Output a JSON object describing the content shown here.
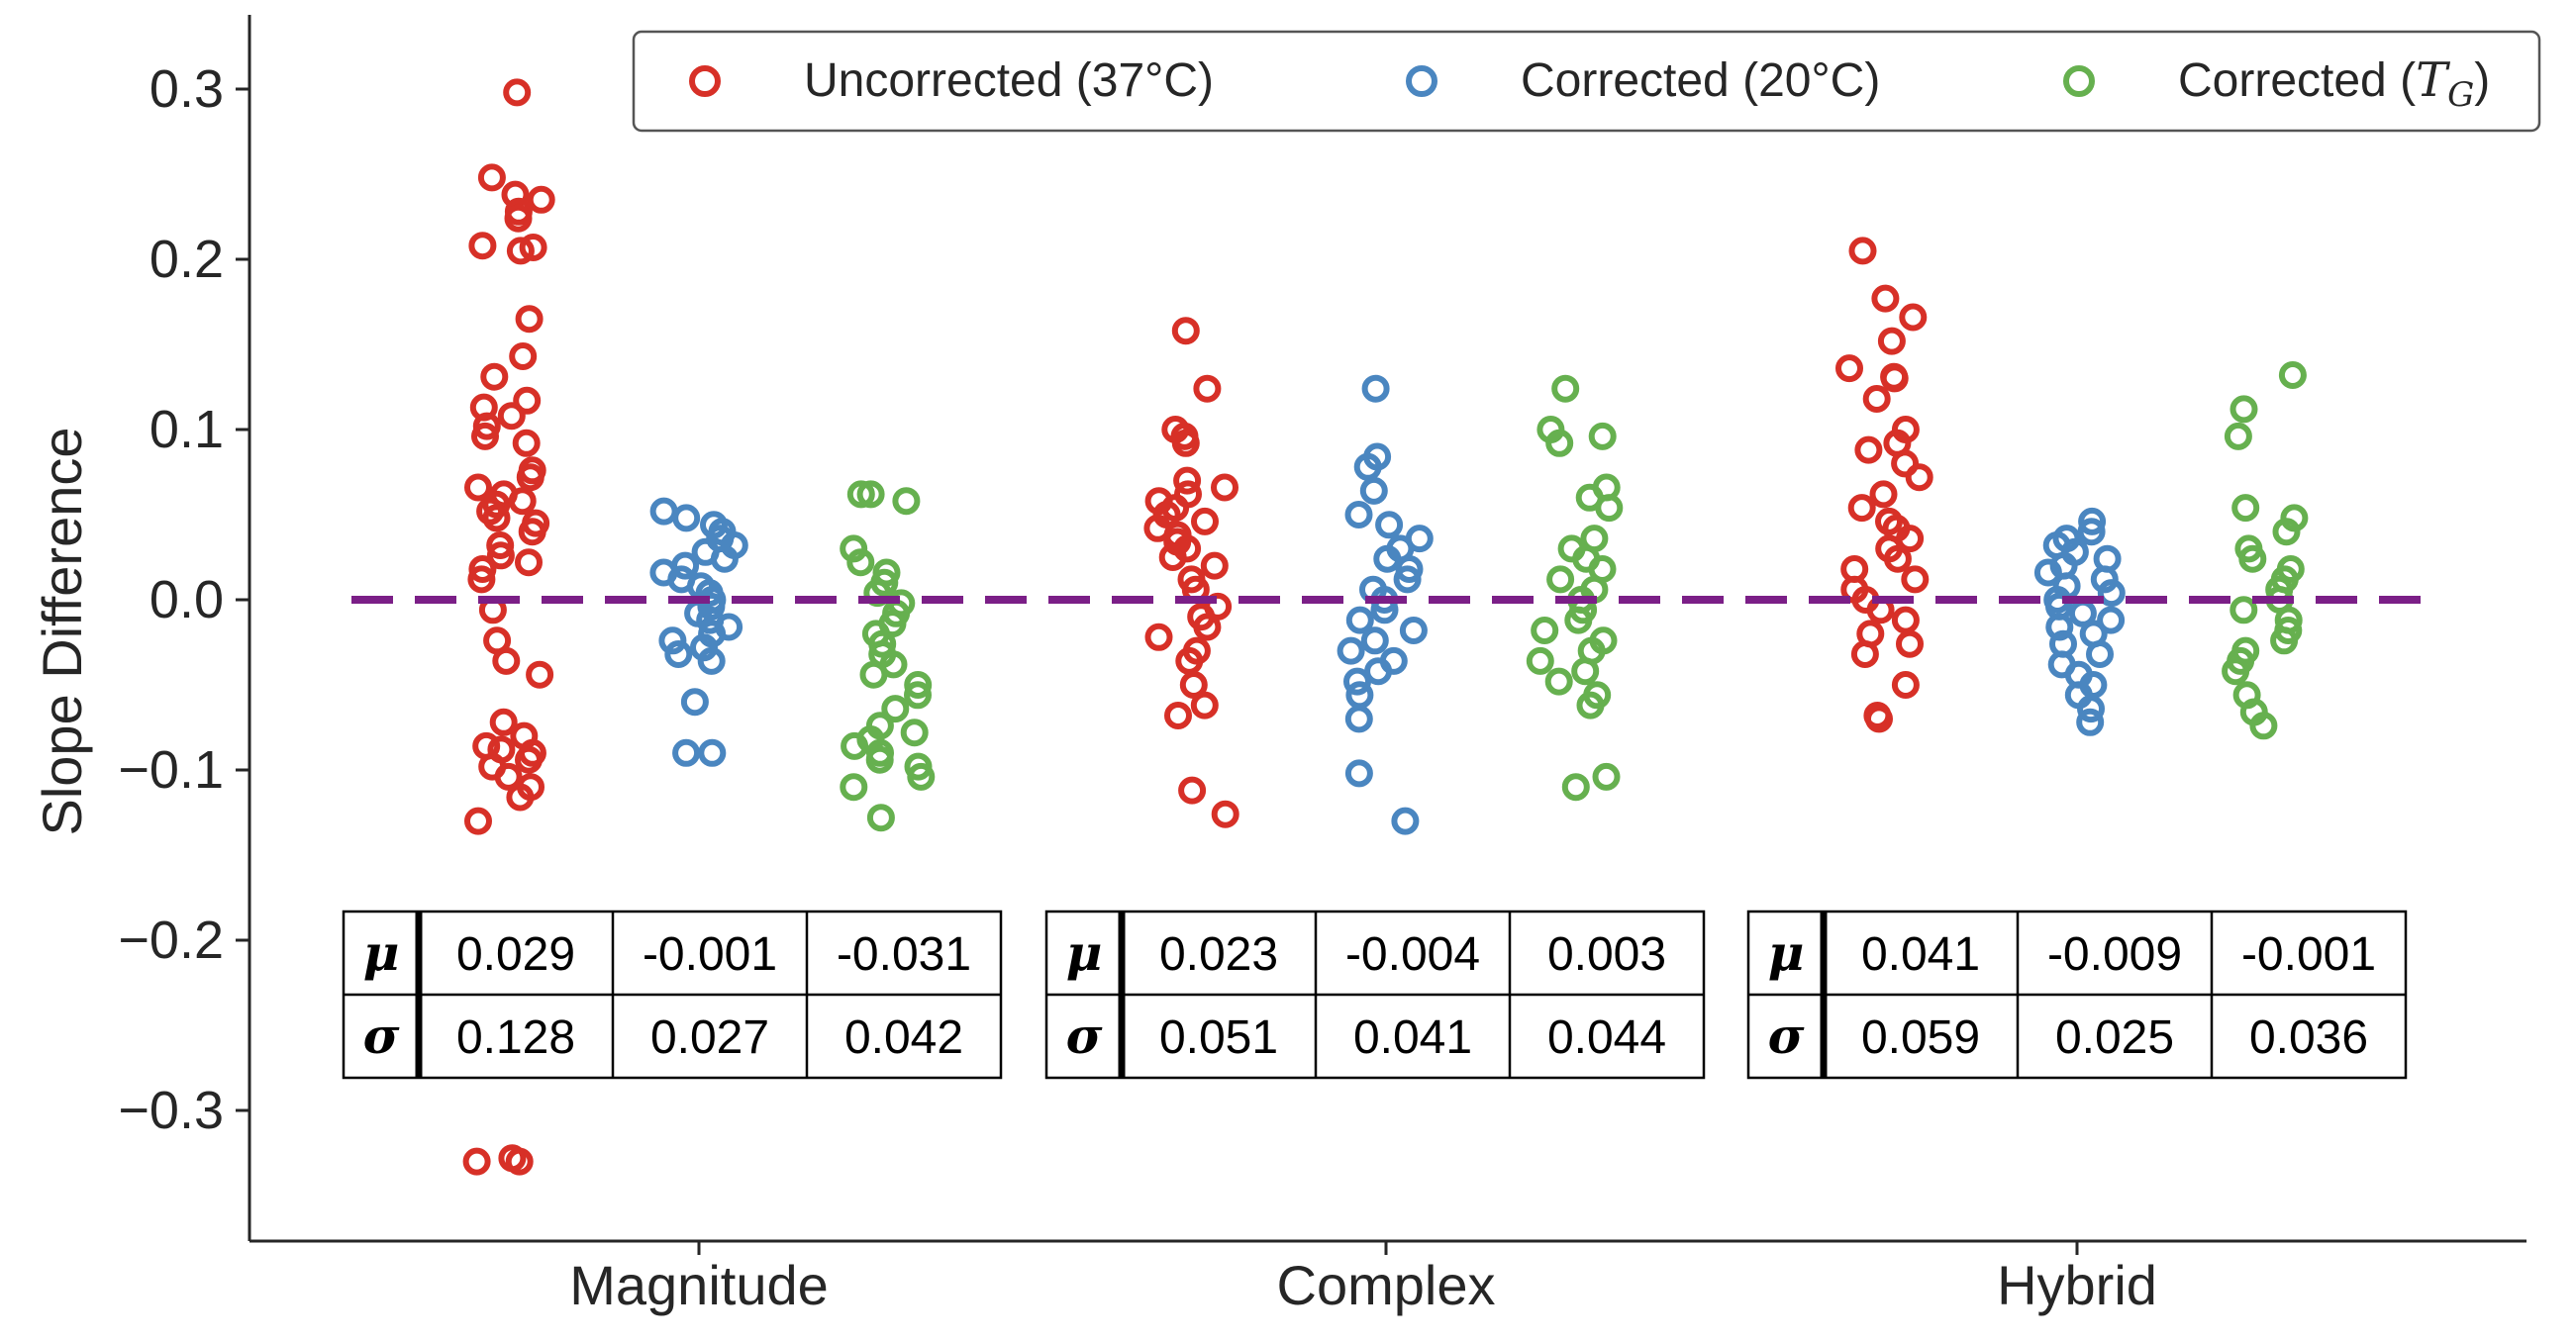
{
  "colors": {
    "uncorrected": "#d73027",
    "corrected20": "#4a86c0",
    "correctedTG": "#66b04f",
    "reference": "#7b1f87",
    "axis": "#262626"
  },
  "chart_data": {
    "type": "scatter",
    "subtype": "strip",
    "title": "",
    "xlabel": "",
    "ylabel": "Slope Difference",
    "ylim": [
      -0.37,
      0.345
    ],
    "yticks": [
      0.3,
      0.2,
      0.1,
      0.0,
      -0.1,
      -0.2,
      -0.3
    ],
    "ytick_labels": [
      "0.3",
      "0.2",
      "0.1",
      "0.0",
      "−0.1",
      "−0.2",
      "−0.3"
    ],
    "categories": [
      "Magnitude",
      "Complex",
      "Hybrid"
    ],
    "reference_line": 0.0,
    "legend": {
      "position": "top-right",
      "entries": [
        {
          "key": "uncorrected",
          "text": "Uncorrected (37°C)"
        },
        {
          "key": "corrected20",
          "text": "Corrected (20°C)"
        },
        {
          "key": "correctedTG",
          "prefix": "Corrected (",
          "var": "T",
          "sub": "G",
          "suffix": ")"
        }
      ]
    },
    "series": [
      {
        "name": "Uncorrected (37°C)",
        "key": "uncorrected",
        "groups": [
          [
            0.298,
            0.248,
            0.238,
            0.235,
            0.228,
            0.224,
            0.208,
            0.207,
            0.205,
            0.165,
            0.143,
            0.131,
            0.117,
            0.113,
            0.108,
            0.102,
            0.096,
            0.092,
            0.076,
            0.072,
            0.066,
            0.062,
            0.058,
            0.056,
            0.052,
            0.048,
            0.045,
            0.04,
            0.032,
            0.026,
            0.022,
            0.018,
            0.012,
            -0.006,
            -0.024,
            -0.036,
            -0.044,
            -0.072,
            -0.08,
            -0.086,
            -0.088,
            -0.09,
            -0.094,
            -0.098,
            -0.104,
            -0.11,
            -0.116,
            -0.13,
            -0.328,
            -0.33,
            -0.33
          ],
          [
            0.158,
            0.124,
            0.1,
            0.096,
            0.092,
            0.07,
            0.066,
            0.062,
            0.058,
            0.054,
            0.05,
            0.046,
            0.042,
            0.038,
            0.034,
            0.03,
            0.025,
            0.02,
            0.012,
            0.006,
            -0.004,
            -0.01,
            -0.016,
            -0.022,
            -0.03,
            -0.036,
            -0.05,
            -0.062,
            -0.068,
            -0.112,
            -0.126
          ],
          [
            0.205,
            0.177,
            0.166,
            0.152,
            0.136,
            0.131,
            0.13,
            0.118,
            0.1,
            0.092,
            0.088,
            0.08,
            0.072,
            0.062,
            0.054,
            0.046,
            0.042,
            0.036,
            0.03,
            0.024,
            0.018,
            0.012,
            0.006,
            0.0,
            -0.006,
            -0.012,
            -0.02,
            -0.026,
            -0.032,
            -0.05,
            -0.068,
            -0.07
          ]
        ]
      },
      {
        "name": "Corrected (20°C)",
        "key": "corrected20",
        "groups": [
          [
            0.052,
            0.048,
            0.044,
            0.04,
            0.036,
            0.032,
            0.028,
            0.024,
            0.02,
            0.016,
            0.012,
            0.008,
            0.004,
            0.0,
            -0.004,
            -0.008,
            -0.012,
            -0.016,
            -0.02,
            -0.024,
            -0.028,
            -0.032,
            -0.036,
            -0.06,
            -0.09,
            -0.09
          ],
          [
            0.124,
            0.084,
            0.078,
            0.064,
            0.05,
            0.044,
            0.036,
            0.03,
            0.024,
            0.018,
            0.012,
            0.006,
            0.0,
            -0.006,
            -0.012,
            -0.018,
            -0.024,
            -0.03,
            -0.036,
            -0.042,
            -0.048,
            -0.056,
            -0.07,
            -0.102,
            -0.13
          ],
          [
            0.046,
            0.04,
            0.036,
            0.032,
            0.028,
            0.024,
            0.02,
            0.016,
            0.012,
            0.008,
            0.004,
            0.0,
            -0.004,
            -0.008,
            -0.012,
            -0.016,
            -0.02,
            -0.026,
            -0.032,
            -0.038,
            -0.044,
            -0.05,
            -0.056,
            -0.064,
            -0.072
          ]
        ]
      },
      {
        "name": "Corrected (TG)",
        "key": "correctedTG",
        "groups": [
          [
            0.062,
            0.062,
            0.058,
            0.03,
            0.022,
            0.016,
            0.01,
            0.004,
            -0.002,
            -0.008,
            -0.014,
            -0.02,
            -0.026,
            -0.032,
            -0.038,
            -0.044,
            -0.05,
            -0.056,
            -0.064,
            -0.074,
            -0.078,
            -0.082,
            -0.086,
            -0.09,
            -0.094,
            -0.098,
            -0.104,
            -0.11,
            -0.128
          ],
          [
            0.124,
            0.1,
            0.096,
            0.092,
            0.066,
            0.06,
            0.054,
            0.036,
            0.03,
            0.024,
            0.018,
            0.012,
            0.006,
            0.0,
            -0.006,
            -0.012,
            -0.018,
            -0.024,
            -0.03,
            -0.036,
            -0.042,
            -0.048,
            -0.056,
            -0.062,
            -0.104,
            -0.11
          ],
          [
            0.132,
            0.112,
            0.096,
            0.054,
            0.048,
            0.04,
            0.03,
            0.024,
            0.018,
            0.012,
            0.006,
            0.0,
            -0.006,
            -0.012,
            -0.018,
            -0.024,
            -0.03,
            -0.036,
            -0.042,
            -0.056,
            -0.066,
            -0.074
          ]
        ]
      }
    ],
    "stats_tables": [
      {
        "category": "Magnitude",
        "mu": [
          "0.029",
          "-0.001",
          "-0.031"
        ],
        "sigma": [
          "0.128",
          "0.027",
          "0.042"
        ]
      },
      {
        "category": "Complex",
        "mu": [
          "0.023",
          "-0.004",
          "0.003"
        ],
        "sigma": [
          "0.051",
          "0.041",
          "0.044"
        ]
      },
      {
        "category": "Hybrid",
        "mu": [
          "0.041",
          "-0.009",
          "-0.001"
        ],
        "sigma": [
          "0.059",
          "0.025",
          "0.036"
        ]
      }
    ],
    "stats_symbols": {
      "mu": "μ",
      "sigma": "σ"
    }
  }
}
